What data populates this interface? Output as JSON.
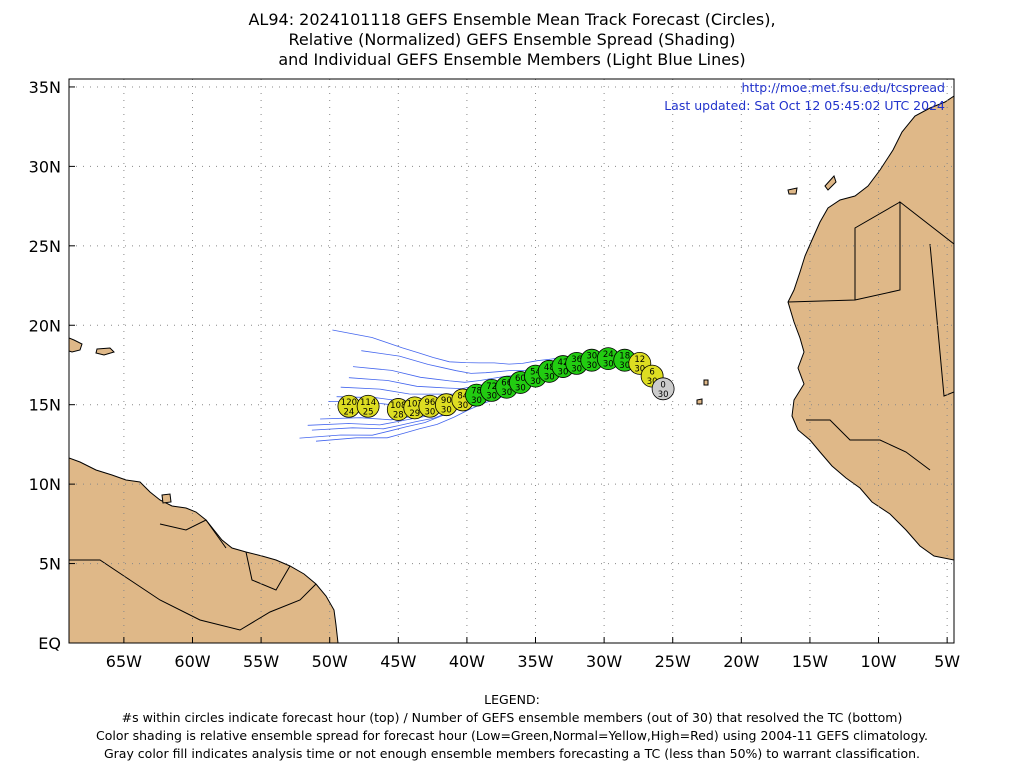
{
  "title": {
    "line1": "AL94: 2024101118 GEFS Ensemble Mean Track Forecast (Circles),",
    "line2": "Relative (Normalized) GEFS Ensemble Spread (Shading)",
    "line3": "and Individual GEFS Ensemble Members (Light Blue Lines)"
  },
  "credit": {
    "url": "http://moe.met.fsu.edu/tcspread",
    "updated": "Last updated: Sat Oct 12 05:45:02 UTC 2024"
  },
  "axes": {
    "lon_labels": [
      "65W",
      "60W",
      "55W",
      "50W",
      "45W",
      "40W",
      "35W",
      "30W",
      "25W",
      "20W",
      "15W",
      "10W",
      "5W"
    ],
    "lat_labels": [
      "EQ",
      "5N",
      "10N",
      "15N",
      "20N",
      "25N",
      "30N",
      "35N"
    ],
    "lon_range": [
      -69,
      -4.5
    ],
    "lat_range": [
      0,
      35.5
    ],
    "grid": "dotted"
  },
  "colors": {
    "land": "#dfb888",
    "low_spread": "#22cc11",
    "normal_spread": "#dddd22",
    "analysis_gray": "#cccccc",
    "member_lines": "#4466ee"
  },
  "chart_data": {
    "type": "scatter",
    "track": [
      {
        "lat": 16.0,
        "lon": -25.7,
        "hour": "0",
        "members": "30",
        "spread": "gray"
      },
      {
        "lat": 16.8,
        "lon": -26.5,
        "hour": "6",
        "members": "30",
        "spread": "normal"
      },
      {
        "lat": 17.6,
        "lon": -27.4,
        "hour": "12",
        "members": "30",
        "spread": "normal"
      },
      {
        "lat": 17.8,
        "lon": -28.5,
        "hour": "18",
        "members": "30",
        "spread": "low"
      },
      {
        "lat": 17.9,
        "lon": -29.7,
        "hour": "24",
        "members": "30",
        "spread": "low"
      },
      {
        "lat": 17.8,
        "lon": -30.9,
        "hour": "30",
        "members": "30",
        "spread": "low"
      },
      {
        "lat": 17.6,
        "lon": -32.0,
        "hour": "36",
        "members": "30",
        "spread": "low"
      },
      {
        "lat": 17.4,
        "lon": -33.0,
        "hour": "42",
        "members": "30",
        "spread": "low"
      },
      {
        "lat": 17.1,
        "lon": -34.0,
        "hour": "48",
        "members": "30",
        "spread": "low"
      },
      {
        "lat": 16.8,
        "lon": -35.0,
        "hour": "54",
        "members": "30",
        "spread": "low"
      },
      {
        "lat": 16.4,
        "lon": -36.1,
        "hour": "60",
        "members": "30",
        "spread": "low"
      },
      {
        "lat": 16.1,
        "lon": -37.1,
        "hour": "66",
        "members": "30",
        "spread": "low"
      },
      {
        "lat": 15.9,
        "lon": -38.2,
        "hour": "72",
        "members": "30",
        "spread": "low"
      },
      {
        "lat": 15.6,
        "lon": -39.3,
        "hour": "78",
        "members": "30",
        "spread": "low"
      },
      {
        "lat": 15.3,
        "lon": -40.3,
        "hour": "84",
        "members": "30",
        "spread": "normal"
      },
      {
        "lat": 15.0,
        "lon": -41.5,
        "hour": "90",
        "members": "30",
        "spread": "normal"
      },
      {
        "lat": 14.9,
        "lon": -42.7,
        "hour": "96",
        "members": "30",
        "spread": "normal"
      },
      {
        "lat": 14.8,
        "lon": -43.8,
        "hour": "102",
        "members": "29",
        "spread": "normal"
      },
      {
        "lat": 14.7,
        "lon": -45.0,
        "hour": "108",
        "members": "28",
        "spread": "normal"
      },
      {
        "lat": 14.9,
        "lon": -47.2,
        "hour": "114",
        "members": "25",
        "spread": "normal"
      },
      {
        "lat": 14.9,
        "lon": -48.6,
        "hour": "120",
        "members": "24",
        "spread": "normal"
      }
    ]
  },
  "legend": {
    "heading": "LEGEND:",
    "line1": "#s within circles indicate forecast hour (top) / Number of GEFS ensemble members (out of 30) that resolved the TC (bottom)",
    "line2": "Color shading is relative ensemble spread for forecast hour (Low=Green,Normal=Yellow,High=Red) using 2004-11 GEFS climatology.",
    "line3": "Gray color fill indicates analysis time or not enough ensemble members forecasting a TC (less than 50%) to warrant classification."
  }
}
